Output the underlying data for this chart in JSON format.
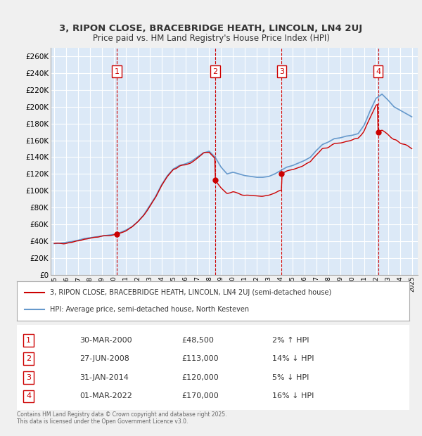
{
  "title1": "3, RIPON CLOSE, BRACEBRIDGE HEATH, LINCOLN, LN4 2UJ",
  "title2": "Price paid vs. HM Land Registry's House Price Index (HPI)",
  "ylabel_color": "#333333",
  "background_color": "#dce9f7",
  "plot_bg_color": "#dce9f7",
  "grid_color": "#ffffff",
  "ylim": [
    0,
    270000
  ],
  "yticks": [
    0,
    20000,
    40000,
    60000,
    80000,
    100000,
    120000,
    140000,
    160000,
    180000,
    200000,
    220000,
    240000,
    260000
  ],
  "sale_dates": [
    "2000-03-30",
    "2008-06-27",
    "2014-01-31",
    "2022-03-01"
  ],
  "sale_prices": [
    48500,
    113000,
    120000,
    170000
  ],
  "sale_labels": [
    "1",
    "2",
    "3",
    "4"
  ],
  "legend_line1": "3, RIPON CLOSE, BRACEBRIDGE HEATH, LINCOLN, LN4 2UJ (semi-detached house)",
  "legend_line2": "HPI: Average price, semi-detached house, North Kesteven",
  "table_rows": [
    [
      "1",
      "30-MAR-2000",
      "£48,500",
      "2% ↑ HPI"
    ],
    [
      "2",
      "27-JUN-2008",
      "£113,000",
      "14% ↓ HPI"
    ],
    [
      "3",
      "31-JAN-2014",
      "£120,000",
      "5% ↓ HPI"
    ],
    [
      "4",
      "01-MAR-2022",
      "£170,000",
      "16% ↓ HPI"
    ]
  ],
  "footer": "Contains HM Land Registry data © Crown copyright and database right 2025.\nThis data is licensed under the Open Government Licence v3.0.",
  "price_line_color": "#cc0000",
  "hpi_line_color": "#6699cc",
  "vline_color": "#cc0000",
  "xstart_year": 1995,
  "xend_year": 2025
}
